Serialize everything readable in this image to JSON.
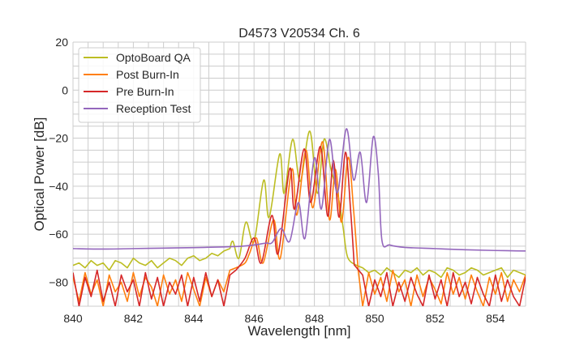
{
  "chart_data": {
    "type": "line",
    "title": "D4573 V20534 Ch. 6",
    "xlabel": "Wavelength [nm]",
    "ylabel": "Optical Power [dB]",
    "xlim": [
      840,
      855
    ],
    "ylim": [
      -90,
      20
    ],
    "xticks": [
      840,
      842,
      844,
      846,
      848,
      850,
      852,
      854
    ],
    "yticks": [
      -80,
      -60,
      -40,
      -20,
      0,
      20
    ],
    "xtick_labels": [
      "840",
      "842",
      "844",
      "846",
      "848",
      "850",
      "852",
      "854"
    ],
    "ytick_labels": [
      "−80",
      "−60",
      "−40",
      "−20",
      "0",
      "20"
    ],
    "grid": true,
    "major_grid_step": {
      "x": 2,
      "y": 20
    },
    "minor_grid_step": {
      "x": 0.5,
      "y": 5
    },
    "legend_position": "top-left",
    "series": [
      {
        "name": "OptoBoard QA",
        "color": "#bcbd22",
        "noise_left": {
          "x_start": 840,
          "x_step": 0.2,
          "y": [
            -73,
            -72,
            -74,
            -71,
            -73,
            -72,
            -75,
            -71,
            -72,
            -74,
            -70,
            -72,
            -73,
            -71,
            -74,
            -72,
            -70,
            -71,
            -73,
            -70,
            -69,
            -71,
            -70,
            -68,
            -69,
            -67,
            -66
          ]
        },
        "points": [
          [
            845.2,
            -66
          ],
          [
            845.3,
            -63
          ],
          [
            845.5,
            -70
          ],
          [
            845.73,
            -55
          ],
          [
            846.0,
            -63
          ],
          [
            846.32,
            -37.5
          ],
          [
            846.5,
            -53
          ],
          [
            846.85,
            -26.6
          ],
          [
            847.0,
            -43
          ],
          [
            847.28,
            -20.5
          ],
          [
            847.53,
            -38
          ],
          [
            847.85,
            -17.1
          ],
          [
            848.1,
            -43
          ],
          [
            848.32,
            -20.5
          ],
          [
            848.55,
            -33
          ],
          [
            848.8,
            -45
          ],
          [
            848.95,
            -57
          ],
          [
            849.1,
            -69.5
          ],
          [
            849.4,
            -73
          ]
        ],
        "noise_right": {
          "x_start": 849.6,
          "x_step": 0.2,
          "y": [
            -74,
            -76,
            -75,
            -77,
            -74,
            -76,
            -78,
            -75,
            -76,
            -74,
            -77,
            -75,
            -76,
            -78,
            -74,
            -75,
            -77,
            -76,
            -74,
            -75,
            -77,
            -76,
            -75,
            -74,
            -78,
            -75,
            -76,
            -77
          ]
        }
      },
      {
        "name": "Post Burn-In",
        "color": "#ff7f0e",
        "noise_left": {
          "x_start": 840,
          "x_step": 0.2,
          "y": [
            -78,
            -88,
            -76,
            -85,
            -79,
            -90,
            -77,
            -84,
            -80,
            -88,
            -76,
            -86,
            -78,
            -82,
            -90,
            -77,
            -85,
            -79,
            -88,
            -76,
            -83,
            -90,
            -78,
            -86,
            -79,
            -84,
            -75
          ]
        },
        "points": [
          [
            845.4,
            -74
          ],
          [
            845.7,
            -72
          ],
          [
            845.85,
            -68
          ],
          [
            846.08,
            -61.6
          ],
          [
            846.3,
            -72
          ],
          [
            846.65,
            -54
          ],
          [
            846.87,
            -70
          ],
          [
            847.25,
            -33
          ],
          [
            847.42,
            -52
          ],
          [
            847.72,
            -25
          ],
          [
            847.95,
            -49
          ],
          [
            848.27,
            -21.5
          ],
          [
            848.5,
            -54
          ],
          [
            848.7,
            -33
          ],
          [
            848.9,
            -55
          ],
          [
            849.12,
            -28
          ],
          [
            849.3,
            -50
          ],
          [
            849.45,
            -75
          ]
        ],
        "noise_right": {
          "x_start": 849.6,
          "x_step": 0.2,
          "y": [
            -90,
            -76,
            -85,
            -78,
            -88,
            -75,
            -84,
            -79,
            -90,
            -77,
            -86,
            -78,
            -83,
            -89,
            -76,
            -85,
            -78,
            -87,
            -77,
            -84,
            -90,
            -78,
            -85,
            -76,
            -88,
            -79,
            -84,
            -77
          ]
        }
      },
      {
        "name": "Pre Burn-In",
        "color": "#d62728",
        "noise_left": {
          "x_start": 840,
          "x_step": 0.2,
          "y": [
            -76,
            -90,
            -78,
            -86,
            -75,
            -88,
            -80,
            -90,
            -77,
            -84,
            -79,
            -90,
            -76,
            -87,
            -78,
            -90,
            -80,
            -85,
            -77,
            -90,
            -78,
            -88,
            -76,
            -86,
            -79,
            -90,
            -77
          ]
        },
        "points": [
          [
            845.4,
            -75
          ],
          [
            845.7,
            -70
          ],
          [
            846.0,
            -61.6
          ],
          [
            846.24,
            -72
          ],
          [
            846.59,
            -52.2
          ],
          [
            846.8,
            -68
          ],
          [
            847.18,
            -32.7
          ],
          [
            847.34,
            -49.5
          ],
          [
            847.66,
            -24.5
          ],
          [
            847.88,
            -46.8
          ],
          [
            848.2,
            -23.5
          ],
          [
            848.44,
            -52.5
          ],
          [
            848.63,
            -29.3
          ],
          [
            848.82,
            -52.9
          ],
          [
            849.03,
            -25.9
          ],
          [
            849.2,
            -50
          ],
          [
            849.32,
            -72.8
          ]
        ],
        "noise_right": {
          "x_start": 849.6,
          "x_step": 0.2,
          "y": [
            -77,
            -90,
            -79,
            -86,
            -76,
            -90,
            -80,
            -88,
            -78,
            -85,
            -90,
            -77,
            -87,
            -79,
            -90,
            -76,
            -86,
            -80,
            -89,
            -78,
            -85,
            -90,
            -77,
            -88,
            -79,
            -86,
            -90,
            -78
          ]
        }
      },
      {
        "name": "Reception Test",
        "color": "#9467bd",
        "points": [
          [
            840,
            -66
          ],
          [
            841,
            -66.2
          ],
          [
            842,
            -66
          ],
          [
            843,
            -65.8
          ],
          [
            844,
            -65.6
          ],
          [
            845,
            -65.3
          ],
          [
            845.6,
            -65
          ],
          [
            846.0,
            -64.5
          ],
          [
            846.4,
            -63.7
          ],
          [
            846.6,
            -63.5
          ],
          [
            846.9,
            -57.6
          ],
          [
            847.18,
            -63
          ],
          [
            847.47,
            -46.8
          ],
          [
            847.69,
            -61.6
          ],
          [
            848.0,
            -28.2
          ],
          [
            848.23,
            -49.5
          ],
          [
            848.5,
            -20.5
          ],
          [
            848.76,
            -42.8
          ],
          [
            849.06,
            -16.1
          ],
          [
            849.3,
            -37.4
          ],
          [
            849.52,
            -25.9
          ],
          [
            849.73,
            -46.8
          ],
          [
            849.95,
            -19.5
          ],
          [
            850.12,
            -35
          ],
          [
            850.24,
            -62.7
          ],
          [
            850.5,
            -64.5
          ],
          [
            851,
            -65.5
          ],
          [
            852,
            -66
          ],
          [
            853,
            -66.5
          ],
          [
            854,
            -66.8
          ],
          [
            855,
            -67
          ]
        ]
      }
    ]
  }
}
